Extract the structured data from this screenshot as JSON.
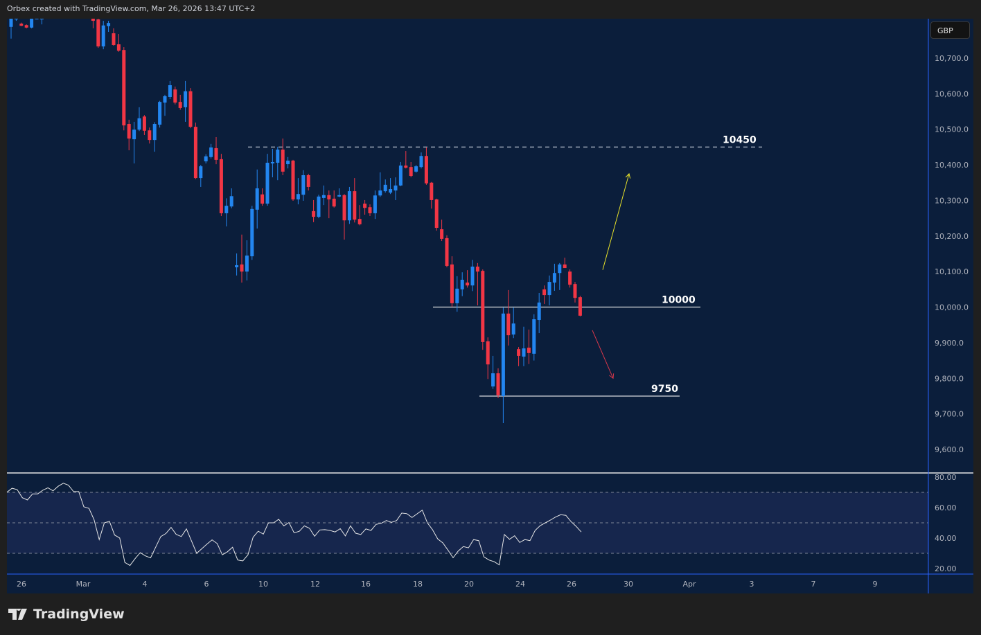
{
  "header": {
    "text": "Orbex created with TradingView.com, Mar 26, 2026 13:47 UTC+2"
  },
  "currency": "GBP",
  "brand": {
    "logo_text": "TradingView"
  },
  "colors": {
    "up": "#2386f0",
    "down": "#f23645",
    "background": "#0b1e3b",
    "frame": "#1f1f1f",
    "rsi_line": "#e6e6e6",
    "rsi_band": "#16264d",
    "bull_arrow": "#e8e22a",
    "bear_arrow": "#d8374a"
  },
  "chart_data": [
    {
      "type": "candlestick",
      "price_axis": {
        "ticks": [
          10700,
          10600,
          10500,
          10400,
          10300,
          10200,
          10100,
          10000,
          9900,
          9800,
          9700,
          9600
        ],
        "labels": [
          "10,700.0",
          "10,600.0",
          "10,500.0",
          "10,400.0",
          "10,300.0",
          "10,200.0",
          "10,100.0",
          "10,000.0",
          "9,900.0",
          "9,800.0",
          "9,700.0",
          "9,600.0"
        ]
      },
      "x_axis": {
        "labels": [
          "26",
          "Mar",
          "4",
          "6",
          "10",
          "12",
          "16",
          "18",
          "20",
          "24",
          "26",
          "30",
          "Apr",
          "3",
          "7",
          "9"
        ]
      },
      "candles_ohlc": [
        [
          10788,
          10811,
          10755,
          10811
        ],
        [
          10815,
          10830,
          10805,
          10822
        ],
        [
          10797,
          10800,
          10790,
          10791
        ],
        [
          10793,
          10795,
          10784,
          10786
        ],
        [
          10786,
          10811,
          10784,
          10811
        ],
        [
          10818,
          10830,
          10810,
          10825
        ],
        [
          10815,
          10830,
          10795,
          10820
        ],
        [
          10825,
          10845,
          10815,
          10835
        ],
        [
          10835,
          10850,
          10825,
          10840
        ],
        [
          10840,
          10855,
          10830,
          10832
        ],
        [
          10832,
          10845,
          10820,
          10838
        ],
        [
          10838,
          10850,
          10828,
          10830
        ],
        [
          10830,
          10842,
          10820,
          10836
        ],
        [
          10836,
          10848,
          10826,
          10828
        ],
        [
          10828,
          10840,
          10818,
          10832
        ],
        [
          10822,
          10830,
          10812,
          10815
        ],
        [
          10811,
          10815,
          10784,
          10805
        ],
        [
          10809,
          10811,
          10729,
          10733
        ],
        [
          10733,
          10805,
          10725,
          10792
        ],
        [
          10790,
          10805,
          10774,
          10799
        ],
        [
          10770,
          10784,
          10735,
          10737
        ],
        [
          10739,
          10768,
          10718,
          10721
        ],
        [
          10723,
          10731,
          10497,
          10511
        ],
        [
          10515,
          10527,
          10441,
          10474
        ],
        [
          10472,
          10521,
          10404,
          10499
        ],
        [
          10499,
          10562,
          10495,
          10531
        ],
        [
          10536,
          10540,
          10484,
          10496
        ],
        [
          10497,
          10505,
          10460,
          10470
        ],
        [
          10470,
          10520,
          10437,
          10515
        ],
        [
          10513,
          10580,
          10505,
          10577
        ],
        [
          10575,
          10597,
          10538,
          10593
        ],
        [
          10591,
          10636,
          10585,
          10624
        ],
        [
          10612,
          10620,
          10570,
          10575
        ],
        [
          10577,
          10597,
          10555,
          10560
        ],
        [
          10562,
          10636,
          10521,
          10607
        ],
        [
          10607,
          10616,
          10503,
          10507
        ],
        [
          10507,
          10519,
          10360,
          10363
        ],
        [
          10363,
          10400,
          10338,
          10396
        ],
        [
          10410,
          10430,
          10404,
          10424
        ],
        [
          10422,
          10459,
          10418,
          10449
        ],
        [
          10447,
          10478,
          10402,
          10414
        ],
        [
          10416,
          10431,
          10256,
          10264
        ],
        [
          10264,
          10306,
          10227,
          10285
        ],
        [
          10283,
          10334,
          10278,
          10312
        ],
        [
          10112,
          10151,
          10089,
          10118
        ],
        [
          10120,
          10204,
          10069,
          10100
        ],
        [
          10100,
          10188,
          10075,
          10145
        ],
        [
          10143,
          10285,
          10133,
          10276
        ],
        [
          10274,
          10387,
          10221,
          10334
        ],
        [
          10317,
          10334,
          10285,
          10291
        ],
        [
          10291,
          10431,
          10285,
          10406
        ],
        [
          10404,
          10445,
          10365,
          10408
        ],
        [
          10406,
          10451,
          10357,
          10443
        ],
        [
          10443,
          10474,
          10371,
          10381
        ],
        [
          10402,
          10422,
          10390,
          10412
        ],
        [
          10412,
          10414,
          10299,
          10303
        ],
        [
          10303,
          10363,
          10289,
          10318
        ],
        [
          10316,
          10385,
          10299,
          10371
        ],
        [
          10371,
          10375,
          10328,
          10338
        ],
        [
          10270,
          10301,
          10239,
          10254
        ],
        [
          10254,
          10316,
          10250,
          10311
        ],
        [
          10307,
          10342,
          10287,
          10315
        ],
        [
          10315,
          10328,
          10250,
          10303
        ],
        [
          10305,
          10328,
          10280,
          10283
        ],
        [
          10311,
          10334,
          10309,
          10315
        ],
        [
          10315,
          10318,
          10190,
          10244
        ],
        [
          10244,
          10338,
          10234,
          10326
        ],
        [
          10326,
          10363,
          10238,
          10246
        ],
        [
          10248,
          10287,
          10230,
          10233
        ],
        [
          10291,
          10301,
          10260,
          10279
        ],
        [
          10281,
          10289,
          10256,
          10264
        ],
        [
          10264,
          10328,
          10248,
          10314
        ],
        [
          10314,
          10379,
          10310,
          10328
        ],
        [
          10326,
          10359,
          10322,
          10344
        ],
        [
          10322,
          10363,
          10318,
          10332
        ],
        [
          10328,
          10365,
          10301,
          10342
        ],
        [
          10342,
          10408,
          10340,
          10398
        ],
        [
          10398,
          10439,
          10390,
          10392
        ],
        [
          10394,
          10408,
          10365,
          10369
        ],
        [
          10381,
          10400,
          10378,
          10396
        ],
        [
          10394,
          10435,
          10390,
          10425
        ],
        [
          10425,
          10449,
          10344,
          10348
        ],
        [
          10350,
          10352,
          10277,
          10301
        ],
        [
          10303,
          10305,
          10215,
          10223
        ],
        [
          10219,
          10246,
          10186,
          10192
        ],
        [
          10194,
          10202,
          10112,
          10116
        ],
        [
          10120,
          10143,
          10001,
          10011
        ],
        [
          10011,
          10087,
          9987,
          10052
        ],
        [
          10050,
          10098,
          10031,
          10077
        ],
        [
          10069,
          10104,
          10055,
          10061
        ],
        [
          10061,
          10133,
          10045,
          10114
        ],
        [
          10114,
          10124,
          10005,
          10100
        ],
        [
          10102,
          10106,
          9880,
          9902
        ],
        [
          9904,
          9915,
          9798,
          9839
        ],
        [
          9777,
          9863,
          9770,
          9814
        ],
        [
          9814,
          9828,
          9744,
          9752
        ],
        [
          9750,
          9999,
          9674,
          9982
        ],
        [
          9982,
          10048,
          9892,
          9921
        ],
        [
          9923,
          9999,
          9913,
          9954
        ],
        [
          9882,
          9888,
          9834,
          9863
        ],
        [
          9861,
          9945,
          9834,
          9884
        ],
        [
          9886,
          9937,
          9840,
          9871
        ],
        [
          9869,
          9980,
          9850,
          9966
        ],
        [
          9964,
          10040,
          9927,
          10013
        ],
        [
          10050,
          10061,
          10009,
          10034
        ],
        [
          10034,
          10089,
          10005,
          10071
        ],
        [
          10069,
          10122,
          10046,
          10096
        ],
        [
          10096,
          10124,
          10048,
          10120
        ],
        [
          10120,
          10139,
          10112,
          10110
        ],
        [
          10100,
          10106,
          10055,
          10063
        ],
        [
          10065,
          10071,
          10013,
          10026
        ],
        [
          10028,
          10032,
          9974,
          9976
        ]
      ],
      "levels": [
        {
          "label": "10450",
          "price": 10450,
          "style": "dashed"
        },
        {
          "label": "10000",
          "price": 10000,
          "style": "solid"
        },
        {
          "label": "9750",
          "price": 9750,
          "style": "solid"
        }
      ],
      "annotations": [
        {
          "type": "arrow",
          "direction": "up",
          "color": "yellow",
          "from_price": 10105,
          "to_price": 10375
        },
        {
          "type": "arrow",
          "direction": "down",
          "color": "red",
          "from_price": 9935,
          "to_price": 9800
        }
      ]
    },
    {
      "type": "line",
      "indicator": "RSI",
      "ylim": [
        20,
        80
      ],
      "axis_labels": [
        "80.00",
        "60.00",
        "40.00",
        "20.00"
      ],
      "axis_ticks": [
        80,
        60,
        40,
        20
      ],
      "bands": [
        70,
        50,
        30
      ],
      "values": [
        70.1,
        72.7,
        71.8,
        66.5,
        65,
        69,
        69,
        71.4,
        73,
        71,
        74,
        76,
        74.7,
        70.5,
        70.5,
        60.5,
        59.5,
        52,
        39,
        50,
        51,
        42,
        40,
        24,
        22,
        26.5,
        30.4,
        28.3,
        27,
        34,
        41,
        43,
        47,
        42.4,
        41,
        46,
        38,
        30,
        33,
        36,
        38.8,
        36.4,
        29,
        31,
        34,
        25.6,
        25,
        29,
        40.5,
        44.5,
        42.6,
        50,
        50,
        52.3,
        48,
        50.2,
        43.5,
        44.4,
        48,
        46.4,
        41.2,
        45.3,
        45.5,
        45,
        44,
        46.2,
        41.4,
        48,
        43.2,
        42.3,
        46,
        45,
        49,
        49.7,
        51.5,
        50.3,
        51.5,
        56.4,
        56,
        53.5,
        55.9,
        58.3,
        50,
        45.5,
        39.4,
        36.8,
        32.1,
        27.1,
        31.5,
        34.4,
        33.6,
        39,
        38.3,
        27.7,
        25.6,
        24.5,
        22.4,
        42.3,
        39.2,
        41.5,
        37.1,
        39,
        38.3,
        45,
        48.2,
        50,
        51.8,
        53.8,
        55.3,
        54.9,
        50.8,
        47.7,
        44
      ]
    }
  ]
}
